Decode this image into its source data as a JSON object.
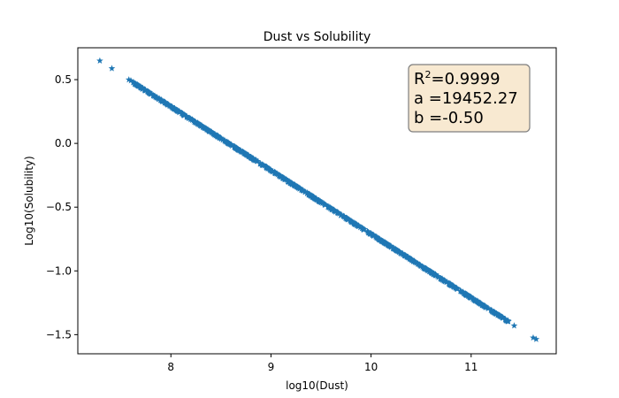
{
  "chart_data": {
    "type": "scatter",
    "title": "Dust vs Solubility",
    "xlabel": "log10(Dust)",
    "ylabel": "Log10(Solubility)",
    "xlim": [
      7.07,
      11.85
    ],
    "ylim": [
      -1.65,
      0.75
    ],
    "xticks": [
      8,
      9,
      10,
      11
    ],
    "yticks": [
      0.5,
      0.0,
      -0.5,
      -1.0,
      -1.5
    ],
    "xtick_labels": [
      "8",
      "9",
      "10",
      "11"
    ],
    "ytick_labels": [
      "0.5",
      "0.0",
      "−0.5",
      "−1.0",
      "−1.5"
    ],
    "grid": false,
    "marker": "star",
    "series_color": "#1f77b4",
    "fit": {
      "a": 19452.27,
      "b": -0.5
    },
    "x_range": [
      7.29,
      11.65
    ],
    "point_count": 900,
    "annotation": {
      "r2_prefix": "R",
      "r2_sup": "2",
      "r2_value": "=0.9999",
      "a_line": "a =19452.27",
      "b_line": "b =-0.50"
    }
  }
}
